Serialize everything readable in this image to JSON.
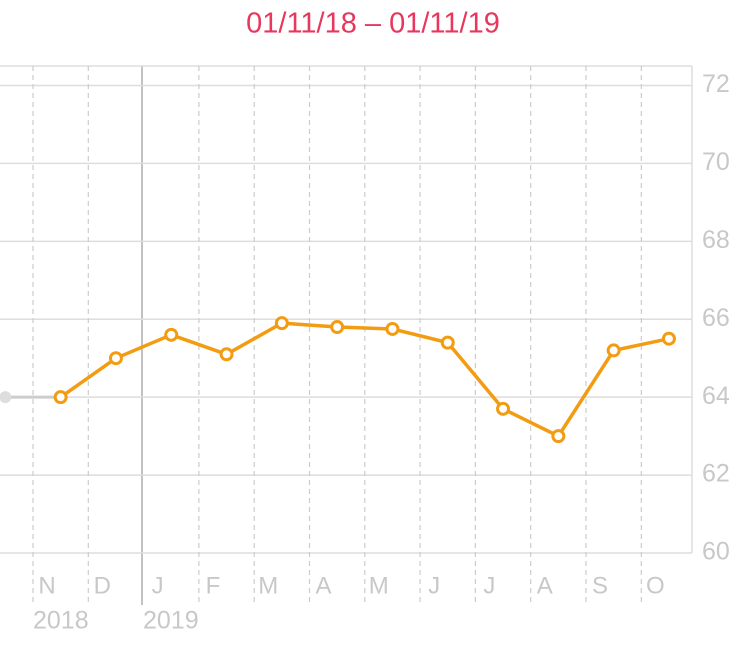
{
  "chart_data": {
    "type": "line",
    "title": "01/11/18 – 01/11/19",
    "categories": [
      null,
      "N",
      "D",
      "J",
      "F",
      "M",
      "A",
      "M",
      "J",
      "J",
      "A",
      "S",
      "O"
    ],
    "values": [
      64.0,
      64.0,
      65.0,
      65.6,
      65.1,
      65.9,
      65.8,
      65.75,
      65.4,
      63.7,
      63.0,
      65.2,
      65.5
    ],
    "color": "#f39c12",
    "ylim": [
      60,
      72.5
    ],
    "yticks": [
      60,
      62,
      64,
      66,
      68,
      70,
      72
    ],
    "grid": true,
    "year_labels": [
      "2018",
      "2019"
    ]
  }
}
